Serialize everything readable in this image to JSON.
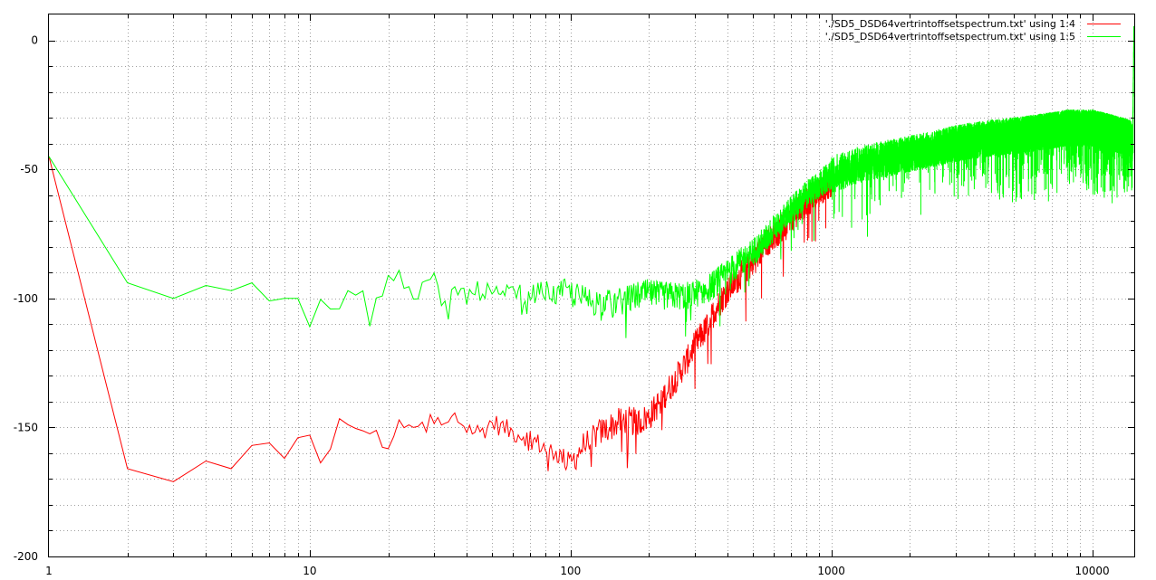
{
  "chart_data": {
    "type": "line",
    "title": "",
    "xlabel": "",
    "ylabel": "",
    "xscale": "log",
    "xlim": [
      1,
      14500
    ],
    "ylim": [
      -200,
      10
    ],
    "xticks": [
      1,
      10,
      100,
      1000,
      10000
    ],
    "xtick_labels": [
      "1",
      "10",
      "100",
      "1000",
      "10000"
    ],
    "yticks": [
      0,
      -50,
      -100,
      -150,
      -200
    ],
    "ytick_labels": [
      "0",
      "-50",
      "-100",
      "-150",
      "-200"
    ],
    "grid": true,
    "legend_position": "top-right",
    "series": [
      {
        "name": "'./SD5_DSD64vertrintoffsetspectrum.txt' using 1:4",
        "color": "#ff0000",
        "x": [
          1,
          2,
          3,
          4,
          5,
          6,
          7,
          8,
          9,
          10,
          11,
          12,
          13,
          14,
          15,
          16,
          17,
          18,
          19,
          20,
          22,
          24,
          26,
          28,
          30,
          33,
          36,
          40,
          45,
          50,
          55,
          60,
          66,
          72,
          80,
          88,
          95,
          100,
          110,
          120,
          140,
          160,
          180,
          200,
          220,
          250,
          280,
          300,
          330,
          360,
          400,
          450,
          500,
          550,
          600,
          700,
          800,
          1000
        ],
        "y": [
          -45,
          -166,
          -171,
          -163,
          -166,
          -157,
          -156,
          -162,
          -154,
          -153,
          -165,
          -151,
          -148,
          -152,
          -153,
          -150,
          -150,
          -149,
          -160,
          -161,
          -146,
          -152,
          -147,
          -146,
          -148,
          -150,
          -146,
          -150,
          -152,
          -148,
          -150,
          -152,
          -153,
          -155,
          -158,
          -160,
          -162,
          -164,
          -158,
          -154,
          -150,
          -147,
          -148,
          -146,
          -140,
          -132,
          -124,
          -118,
          -112,
          -104,
          -97,
          -91,
          -86,
          -80,
          -76,
          -69,
          -63,
          -55
        ]
      },
      {
        "name": "'./SD5_DSD64vertrintoffsetspectrum.txt' using 1:5",
        "color": "#00ff00",
        "x": [
          1,
          2,
          3,
          4,
          5,
          6,
          7,
          8,
          9,
          10,
          11,
          12,
          13,
          14,
          15,
          16,
          17,
          18,
          19,
          20,
          22,
          24,
          26,
          28,
          30,
          33,
          36,
          40,
          45,
          50,
          55,
          60,
          66,
          72,
          80,
          88,
          95,
          100,
          110,
          120,
          140,
          160,
          180,
          200,
          220,
          250,
          280,
          300,
          330,
          360,
          400,
          450,
          500,
          550,
          600,
          700,
          800,
          1000,
          1300,
          1600,
          2000,
          2500,
          3000,
          4000,
          5000,
          6000,
          7000,
          8000,
          9000,
          10000,
          11000,
          12000,
          13000,
          14000,
          14300,
          14450
        ],
        "y": [
          -45,
          -94,
          -100,
          -95,
          -97,
          -94,
          -101,
          -100,
          -100,
          -111,
          -103,
          -101,
          -102,
          -100,
          -101,
          -99,
          -108,
          -99,
          -98,
          -95,
          -91,
          -95,
          -99,
          -96,
          -94,
          -103,
          -96,
          -99,
          -97,
          -98,
          -100,
          -97,
          -99,
          -98,
          -97,
          -99,
          -96,
          -98,
          -100,
          -101,
          -102,
          -101,
          -99,
          -98,
          -99,
          -99,
          -99,
          -98,
          -97,
          -94,
          -90,
          -86,
          -82,
          -78,
          -73,
          -66,
          -60,
          -52,
          -48,
          -46,
          -44,
          -42,
          -40,
          -38,
          -37,
          -36,
          -35,
          -34,
          -34,
          -34,
          -35,
          -36,
          -37,
          -38,
          -40,
          0
        ]
      }
    ]
  }
}
